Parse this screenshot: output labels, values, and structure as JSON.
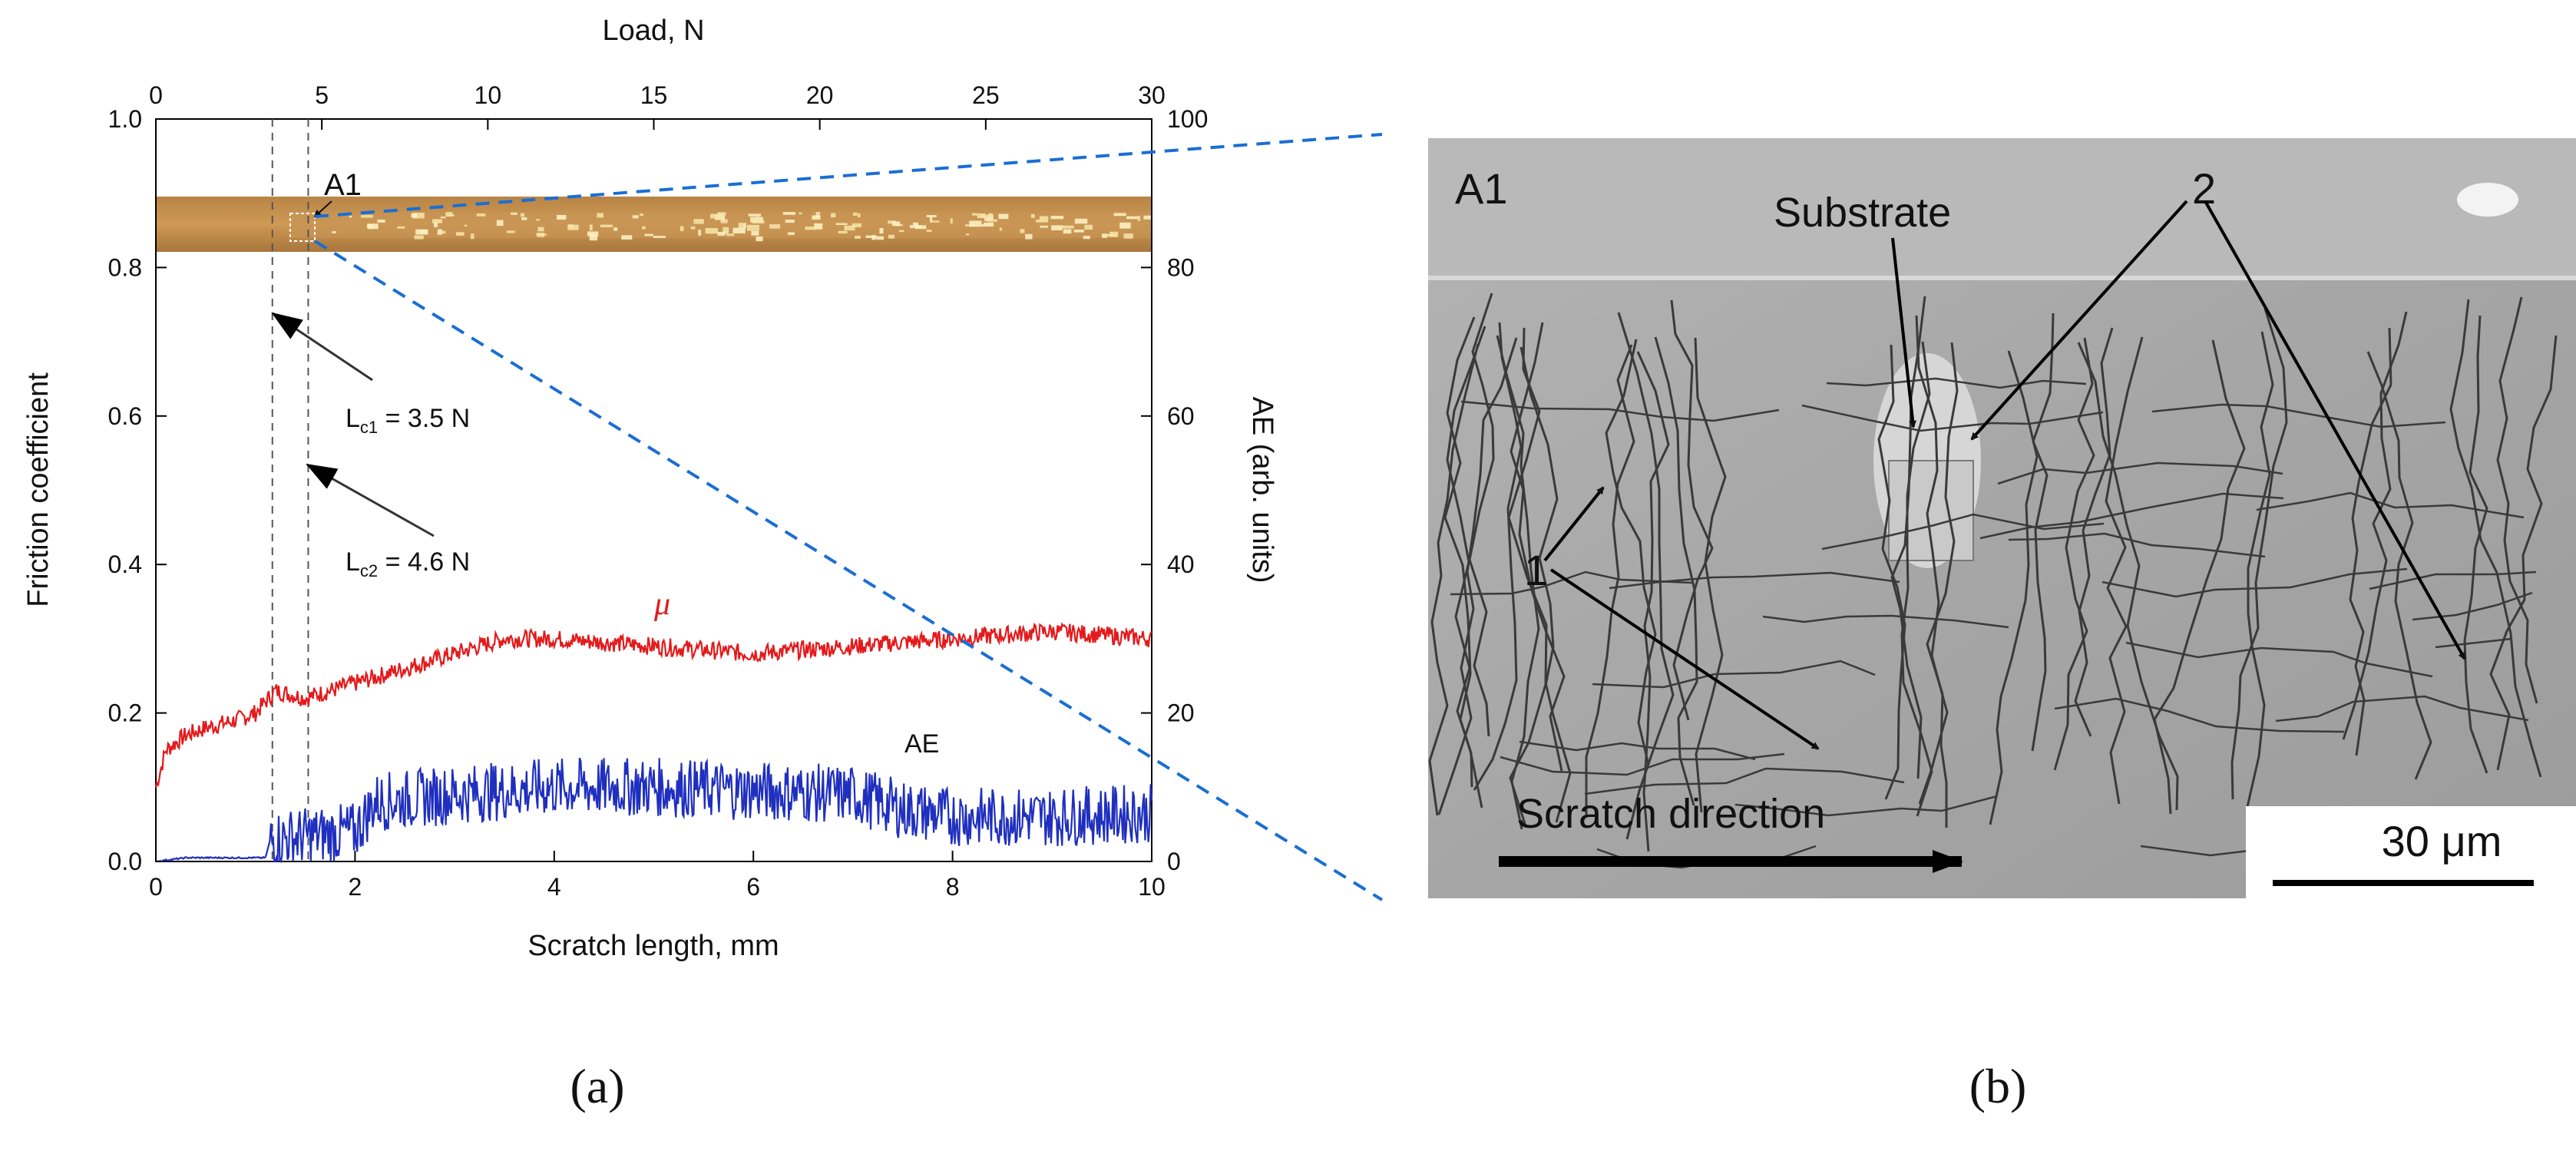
{
  "figure": {
    "panel_a_label": "(a)",
    "panel_b_label": "(b)"
  },
  "chart_data": {
    "type": "line",
    "xlabel": "Scratch length, mm",
    "top_xlabel": "Load, N",
    "ylabel": "Friction coefficient",
    "right_ylabel": "AE (arb. units)",
    "xlim": [
      0,
      10
    ],
    "ylim": [
      0.0,
      1.0
    ],
    "top_xlim": [
      0,
      30
    ],
    "right_ylim": [
      0,
      100
    ],
    "x_ticks": [
      "0",
      "2",
      "4",
      "6",
      "8",
      "10"
    ],
    "y_ticks": [
      "0.0",
      "0.2",
      "0.4",
      "0.6",
      "0.8",
      "1.0"
    ],
    "top_x_ticks": [
      "0",
      "5",
      "10",
      "15",
      "20",
      "25",
      "30"
    ],
    "right_y_ticks": [
      "0",
      "20",
      "40",
      "60",
      "80",
      "100"
    ],
    "series": [
      {
        "name": "μ",
        "axis": "left",
        "color": "#e31a1c",
        "x": [
          0,
          0.1,
          0.3,
          0.5,
          0.8,
          1.0,
          1.2,
          1.5,
          2.0,
          2.5,
          3.0,
          3.5,
          4.0,
          5.0,
          6.0,
          7.0,
          8.0,
          9.0,
          10.0
        ],
        "values": [
          0.1,
          0.15,
          0.17,
          0.18,
          0.19,
          0.2,
          0.23,
          0.22,
          0.24,
          0.26,
          0.28,
          0.3,
          0.3,
          0.29,
          0.28,
          0.29,
          0.3,
          0.31,
          0.3
        ],
        "noise": 0.012
      },
      {
        "name": "AE",
        "axis": "right",
        "color": "#1f2fbf",
        "x": [
          0,
          0.3,
          1.1,
          1.15,
          1.6,
          2.0,
          2.2,
          3.0,
          4.0,
          5.0,
          6.0,
          7.0,
          7.5,
          8.0,
          9.0,
          10.0
        ],
        "values": [
          0,
          0.5,
          0.5,
          3,
          3.5,
          4,
          8,
          9,
          10,
          10,
          9.5,
          9,
          7,
          6,
          6,
          6.5
        ],
        "noise": 4.0
      }
    ],
    "critical_lines": [
      {
        "x": 1.17,
        "label": "L",
        "sub": "c1",
        "value": " = 3.5 N"
      },
      {
        "x": 1.53,
        "label": "L",
        "sub": "c2",
        "value": " = 4.6 N"
      }
    ],
    "annotations": {
      "mu_label": "μ",
      "ae_label": "AE",
      "region_label": "A1"
    }
  },
  "micrograph": {
    "region_label": "A1",
    "substrate_label": "Substrate",
    "label_1": "1",
    "label_2": "2",
    "direction_label": "Scratch direction",
    "scale_bar_label": "30 μm"
  }
}
